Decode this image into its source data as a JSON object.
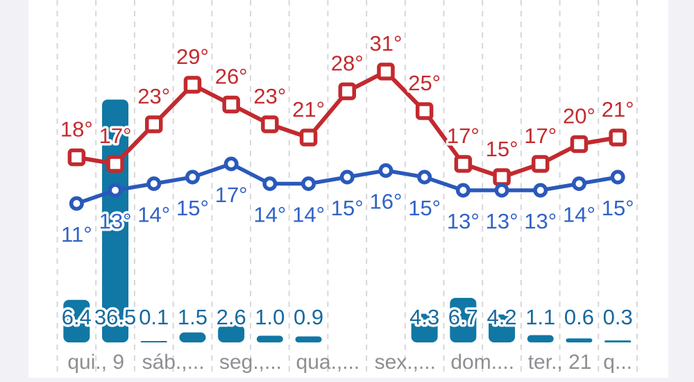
{
  "chart_data": {
    "type": "line",
    "title": "",
    "subtitle": "",
    "legend": "none",
    "grid": "vertical-dashed",
    "columns": 15,
    "x_day_labels": [
      "qui., 9",
      "sáb.,...",
      "seg.,...",
      "qua.,...",
      "sex.,...",
      "dom....",
      "ter., 21",
      "q..."
    ],
    "x_day_label_span_columns": 2,
    "temp_unit": "°",
    "axis_hints": {
      "temp_visible_min": 11,
      "temp_visible_max": 31,
      "precip_visible_max": 36.5
    },
    "series": [
      {
        "name": "high-temperature",
        "type": "line",
        "marker": "square",
        "color": "#c22a2f",
        "values": [
          18,
          17,
          23,
          29,
          26,
          23,
          21,
          28,
          31,
          25,
          17,
          15,
          17,
          20,
          21
        ],
        "labels": [
          "18°",
          "17°",
          "23°",
          "29°",
          "26°",
          "23°",
          "21°",
          "28°",
          "31°",
          "25°",
          "17°",
          "15°",
          "17°",
          "20°",
          "21°"
        ]
      },
      {
        "name": "low-temperature",
        "type": "line",
        "marker": "circle",
        "color": "#2a59bb",
        "values": [
          11,
          13,
          14,
          15,
          17,
          14,
          14,
          15,
          16,
          15,
          13,
          13,
          13,
          14,
          15
        ],
        "labels": [
          "11°",
          "13°",
          "14°",
          "15°",
          "17°",
          "14°",
          "14°",
          "15°",
          "16°",
          "15°",
          "13°",
          "13°",
          "13°",
          "14°",
          "15°"
        ]
      },
      {
        "name": "precipitation",
        "type": "bar",
        "color": "#1177a4",
        "values": [
          6.4,
          36.5,
          0.1,
          1.5,
          2.6,
          1.0,
          0.9,
          null,
          null,
          4.3,
          6.7,
          4.2,
          1.1,
          0.6,
          0.3
        ],
        "labels": [
          "6.4",
          "36.5",
          "0.1",
          "1.5",
          "2.6",
          "1.0",
          "0.9",
          null,
          null,
          "4.3",
          "6.7",
          "4.2",
          "1.1",
          "0.6",
          "0.3"
        ]
      }
    ]
  },
  "colors": {
    "background": "#ffffff",
    "page_edge": "#f1f1f6",
    "gridline": "#d7d7db",
    "high_temp": "#c22a2f",
    "high_temp_label": "#c32b2f",
    "low_temp": "#2a59bb",
    "low_temp_label": "#3162c6",
    "precip_bar": "#1177a4",
    "precip_label": "#17699e",
    "day_label": "#8e8e93",
    "label_halo": "#ffffff"
  }
}
